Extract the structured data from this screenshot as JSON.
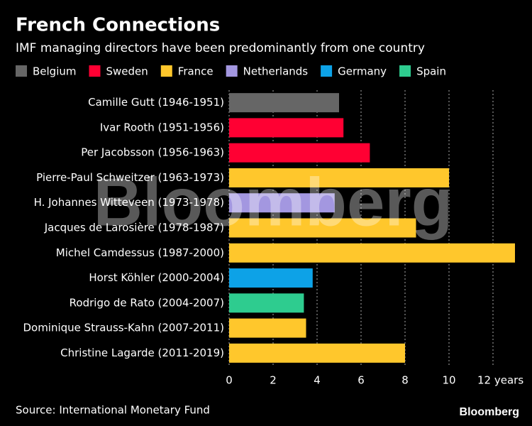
{
  "chart_data": {
    "type": "bar",
    "orientation": "horizontal",
    "title": "French Connections",
    "subtitle": "IMF managing directors have been predominantly from one country",
    "categories": [
      "Camille Gutt (1946-1951)",
      "Ivar Rooth (1951-1956)",
      "Per Jacobsson (1956-1963)",
      "Pierre-Paul Schweitzer (1963-1973)",
      "H. Johannes Witteveen (1973-1978)",
      "Jacques de Larosière (1978-1987)",
      "Michel Camdessus (1987-2000)",
      "Horst Köhler (2000-2004)",
      "Rodrigo de Rato (2004-2007)",
      "Dominique Strauss-Kahn (2007-2011)",
      "Christine Lagarde (2011-2019)"
    ],
    "series": [
      {
        "name": "Belgium",
        "color": "#666666",
        "values": [
          5,
          null,
          null,
          null,
          null,
          null,
          null,
          null,
          null,
          null,
          null
        ]
      },
      {
        "name": "Sweden",
        "color": "#ff0033",
        "values": [
          null,
          5.2,
          6.4,
          null,
          null,
          null,
          null,
          null,
          null,
          null,
          null
        ]
      },
      {
        "name": "France",
        "color": "#ffc72c",
        "values": [
          null,
          null,
          null,
          10,
          null,
          8.5,
          13,
          null,
          null,
          3.5,
          8
        ]
      },
      {
        "name": "Netherlands",
        "color": "#a397e0",
        "values": [
          null,
          null,
          null,
          null,
          4.8,
          null,
          null,
          null,
          null,
          null,
          null
        ]
      },
      {
        "name": "Germany",
        "color": "#0da2e7",
        "values": [
          null,
          null,
          null,
          null,
          null,
          null,
          null,
          3.8,
          null,
          null,
          null
        ]
      },
      {
        "name": "Spain",
        "color": "#2ecc8f",
        "values": [
          null,
          null,
          null,
          null,
          null,
          null,
          null,
          null,
          3.4,
          null,
          null
        ]
      }
    ],
    "xlim": [
      0,
      13.2
    ],
    "xticks": [
      0,
      2,
      4,
      6,
      8,
      10,
      {
        "value": 12,
        "label": "12 years"
      }
    ],
    "grid": true,
    "source": "Source: International Monetary Fund",
    "watermark": "Bloomberg",
    "logo": "Bloomberg"
  }
}
